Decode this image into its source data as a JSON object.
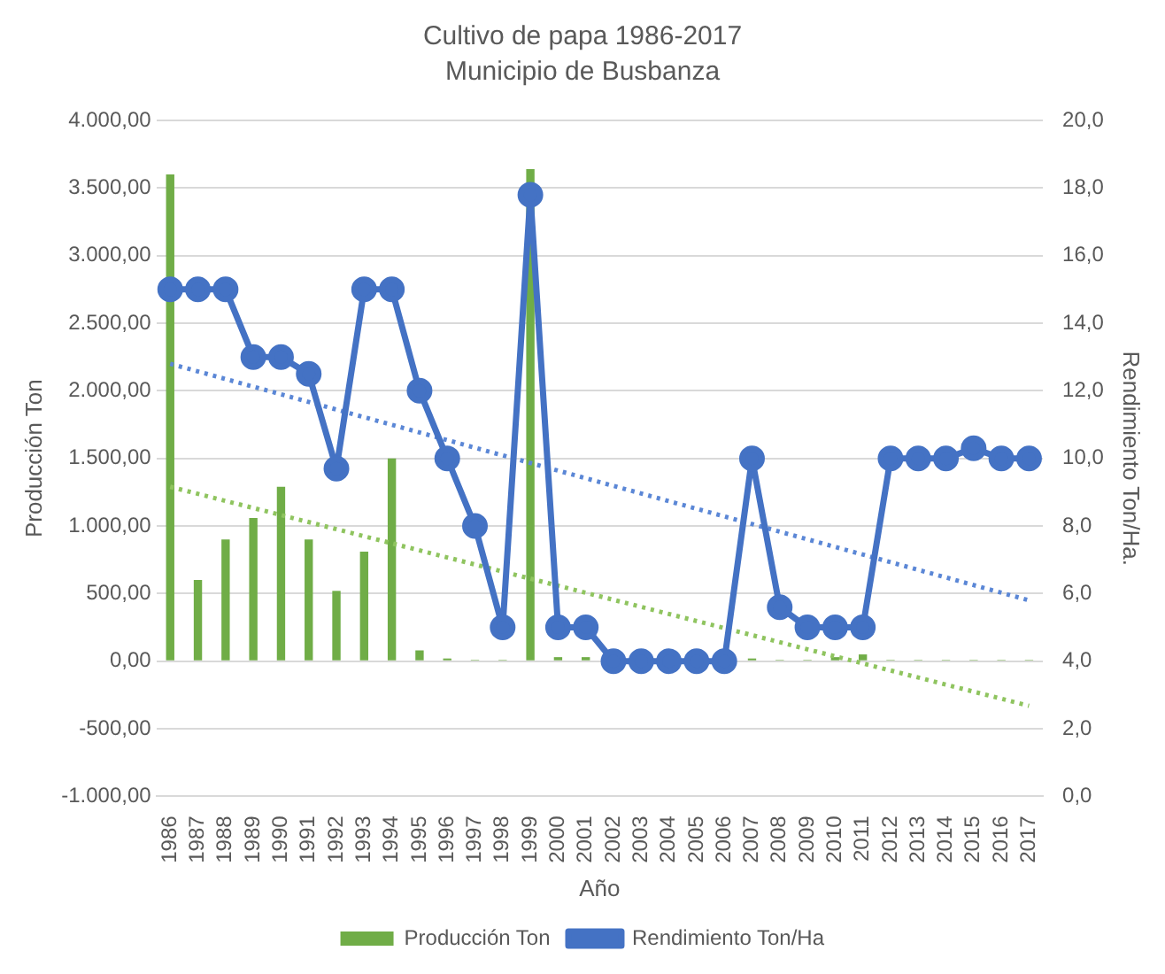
{
  "chart_data": {
    "type": "bar",
    "title": "Cultivo de papa 1986-2017",
    "subtitle": "Municipio de Busbanza",
    "xlabel": "Año",
    "ylabel": "Producción Ton",
    "y2label": "Rendimiento Ton/Ha.",
    "categories": [
      "1986",
      "1987",
      "1988",
      "1989",
      "1990",
      "1991",
      "1992",
      "1993",
      "1994",
      "1995",
      "1996",
      "1997",
      "1998",
      "1999",
      "2000",
      "2001",
      "2002",
      "2003",
      "2004",
      "2005",
      "2006",
      "2007",
      "2008",
      "2009",
      "2010",
      "2011",
      "2012",
      "2013",
      "2014",
      "2015",
      "2016",
      "2017"
    ],
    "series": [
      {
        "name": "Producción Ton",
        "color": "#70ad47",
        "values": [
          3600,
          600,
          900,
          1060,
          1290,
          900,
          520,
          810,
          1500,
          80,
          20,
          10,
          10,
          3640,
          30,
          30,
          0,
          0,
          0,
          0,
          0,
          20,
          10,
          10,
          30,
          50,
          10,
          10,
          10,
          10,
          10,
          10
        ]
      },
      {
        "name": "Rendimiento Ton/Ha",
        "type": "line",
        "axis": "y2",
        "color": "#4472c4",
        "marker": "circle",
        "values": [
          15,
          15,
          15,
          13,
          13,
          12.5,
          9.7,
          15,
          15,
          12,
          10,
          8,
          5,
          17.8,
          5,
          5,
          4,
          4,
          4,
          4,
          4,
          10,
          5.6,
          5,
          5,
          5,
          10,
          10,
          10,
          10.3,
          10,
          10
        ]
      },
      {
        "type": "line",
        "color": "#8fc45f",
        "line_style": "dotted",
        "marker": "none",
        "values": [
          1290,
          null,
          null,
          null,
          null,
          null,
          null,
          null,
          null,
          null,
          null,
          null,
          null,
          null,
          null,
          null,
          null,
          null,
          null,
          null,
          null,
          null,
          null,
          null,
          null,
          null,
          null,
          null,
          null,
          null,
          null,
          -330
        ]
      },
      {
        "type": "line",
        "axis": "y2",
        "color": "#5b87d6",
        "line_style": "dotted",
        "marker": "none",
        "values": [
          12.8,
          null,
          null,
          null,
          null,
          null,
          null,
          null,
          null,
          null,
          null,
          null,
          null,
          null,
          null,
          null,
          null,
          null,
          null,
          null,
          null,
          null,
          null,
          null,
          null,
          null,
          null,
          null,
          null,
          null,
          null,
          5.8
        ]
      }
    ],
    "ylim": [
      -1000,
      4000
    ],
    "yticks": [
      {
        "value": -1000,
        "label": "-1.000,00"
      },
      {
        "value": -500,
        "label": "-500,00"
      },
      {
        "value": 0,
        "label": "0,00"
      },
      {
        "value": 500,
        "label": "500,00"
      },
      {
        "value": 1000,
        "label": "1.000,00"
      },
      {
        "value": 1500,
        "label": "1.500,00"
      },
      {
        "value": 2000,
        "label": "2.000,00"
      },
      {
        "value": 2500,
        "label": "2.500,00"
      },
      {
        "value": 3000,
        "label": "3.000,00"
      },
      {
        "value": 3500,
        "label": "3.500,00"
      },
      {
        "value": 4000,
        "label": "4.000,00"
      }
    ],
    "y2lim": [
      0,
      20
    ],
    "y2ticks": [
      {
        "value": 0,
        "label": "0,0"
      },
      {
        "value": 2,
        "label": "2,0"
      },
      {
        "value": 4,
        "label": "4,0"
      },
      {
        "value": 6,
        "label": "6,0"
      },
      {
        "value": 8,
        "label": "8,0"
      },
      {
        "value": 10,
        "label": "10,0"
      },
      {
        "value": 12,
        "label": "12,0"
      },
      {
        "value": 14,
        "label": "14,0"
      },
      {
        "value": 16,
        "label": "16,0"
      },
      {
        "value": 18,
        "label": "18,0"
      },
      {
        "value": 20,
        "label": "20,0"
      }
    ],
    "grid": "y",
    "legend": "bottom"
  }
}
